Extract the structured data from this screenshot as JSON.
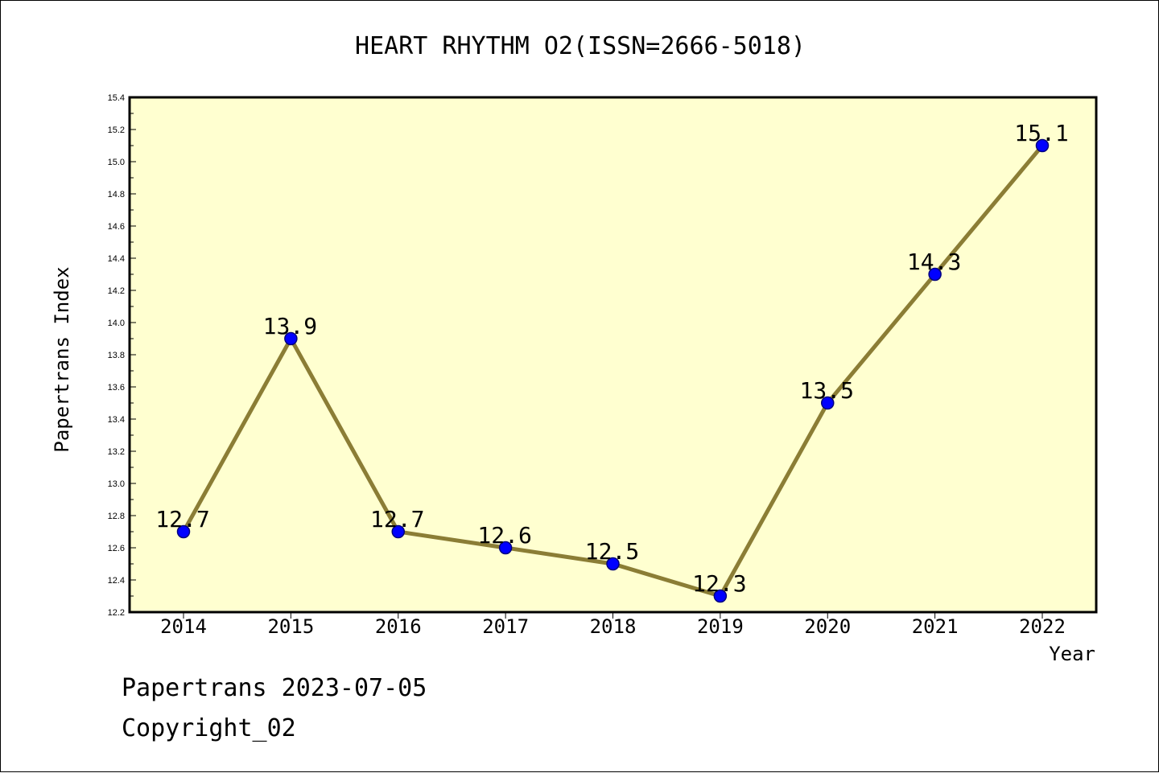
{
  "chart_data": {
    "type": "line",
    "title": "HEART RHYTHM O2(ISSN=2666-5018)",
    "xlabel": "Year",
    "ylabel": "Papertrans Index",
    "categories": [
      "2014",
      "2015",
      "2016",
      "2017",
      "2018",
      "2019",
      "2020",
      "2021",
      "2022"
    ],
    "series": [
      {
        "values": [
          12.7,
          13.9,
          12.7,
          12.6,
          12.5,
          12.3,
          13.5,
          14.3,
          15.1
        ],
        "data_labels": [
          "12.7",
          "13.9",
          "12.7",
          "12.6",
          "12.5",
          "12.3",
          "13.5",
          "14.3",
          "15.1"
        ]
      }
    ],
    "ylim": [
      12.2,
      15.4
    ],
    "yticks": [
      "12.2",
      "12.4",
      "12.6",
      "12.8",
      "13.0",
      "13.2",
      "13.4",
      "13.6",
      "13.8",
      "14.0",
      "14.2",
      "14.4",
      "14.6",
      "14.8",
      "15.0",
      "15.2",
      "15.4"
    ],
    "grid": false,
    "legend": "none",
    "colors": {
      "plot_background": "#ffffd0",
      "line": "#8b7d35",
      "marker": "#0000ff",
      "marker_edge": "#000080"
    }
  },
  "footer": {
    "date_line": "Papertrans 2023-07-05",
    "copyright_line": "Copyright_02"
  }
}
